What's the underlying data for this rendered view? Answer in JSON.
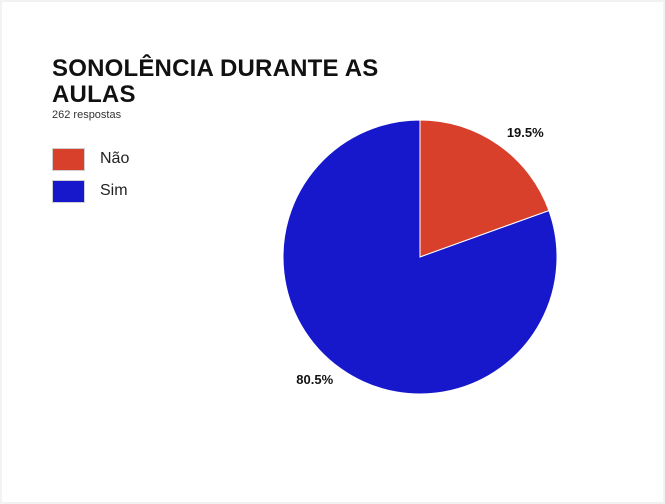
{
  "chart_data": {
    "type": "pie",
    "title": "SONOLÊNCIA DURANTE AS AULAS",
    "subtitle": "262 respostas",
    "categories": [
      "Não",
      "Sim"
    ],
    "values": [
      19.5,
      80.5
    ],
    "value_labels": [
      "19.5%",
      "80.5%"
    ],
    "colors": [
      "#d8402c",
      "#1717cc"
    ],
    "legend_position": "left",
    "start_angle": "12 o'clock",
    "direction": "clockwise"
  }
}
